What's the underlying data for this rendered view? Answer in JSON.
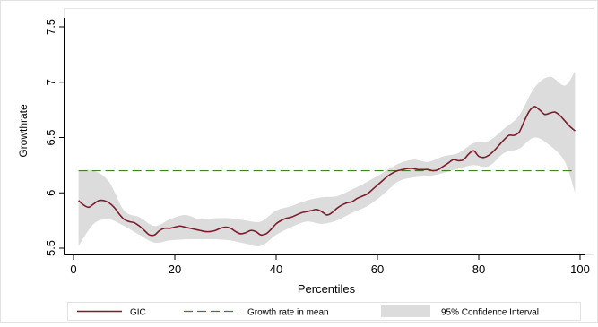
{
  "chart_data": {
    "type": "line",
    "xlabel": "Percentiles",
    "ylabel": "Growthrate",
    "xlim": [
      0,
      100
    ],
    "ylim": [
      5.5,
      7.5
    ],
    "xticks": [
      0,
      20,
      40,
      60,
      80,
      100
    ],
    "yticks": [
      5.5,
      6,
      6.5,
      7,
      7.5
    ],
    "grid": false,
    "legend_position": "bottom",
    "series": [
      {
        "name": "GIC",
        "color": "#7b1c2c",
        "x": [
          1,
          2,
          3,
          4,
          5,
          6,
          7,
          8,
          9,
          10,
          11,
          12,
          13,
          14,
          15,
          16,
          17,
          18,
          19,
          20,
          21,
          22,
          23,
          24,
          25,
          26,
          27,
          28,
          29,
          30,
          31,
          32,
          33,
          34,
          35,
          36,
          37,
          38,
          39,
          40,
          41,
          42,
          43,
          44,
          45,
          46,
          47,
          48,
          49,
          50,
          51,
          52,
          53,
          54,
          55,
          56,
          57,
          58,
          59,
          60,
          61,
          62,
          63,
          64,
          65,
          66,
          67,
          68,
          69,
          70,
          71,
          72,
          73,
          74,
          75,
          76,
          77,
          78,
          79,
          80,
          81,
          82,
          83,
          84,
          85,
          86,
          87,
          88,
          89,
          90,
          91,
          92,
          93,
          94,
          95,
          96,
          97,
          98,
          99
        ],
        "y": [
          5.93,
          5.89,
          5.87,
          5.9,
          5.93,
          5.93,
          5.91,
          5.87,
          5.81,
          5.76,
          5.74,
          5.73,
          5.7,
          5.66,
          5.62,
          5.62,
          5.66,
          5.68,
          5.68,
          5.69,
          5.7,
          5.69,
          5.68,
          5.67,
          5.66,
          5.65,
          5.65,
          5.66,
          5.68,
          5.69,
          5.68,
          5.65,
          5.63,
          5.64,
          5.66,
          5.65,
          5.62,
          5.63,
          5.67,
          5.72,
          5.75,
          5.77,
          5.78,
          5.8,
          5.82,
          5.83,
          5.84,
          5.85,
          5.83,
          5.8,
          5.82,
          5.86,
          5.89,
          5.91,
          5.92,
          5.95,
          5.97,
          5.99,
          6.03,
          6.07,
          6.11,
          6.15,
          6.18,
          6.2,
          6.21,
          6.22,
          6.22,
          6.21,
          6.21,
          6.21,
          6.2,
          6.21,
          6.24,
          6.27,
          6.3,
          6.29,
          6.3,
          6.35,
          6.38,
          6.33,
          6.32,
          6.34,
          6.38,
          6.43,
          6.48,
          6.52,
          6.52,
          6.55,
          6.65,
          6.74,
          6.78,
          6.75,
          6.71,
          6.72,
          6.73,
          6.7,
          6.65,
          6.6,
          6.56
        ]
      },
      {
        "name": "Growth rate in mean",
        "color": "#4a7a2a",
        "x": [
          1,
          99
        ],
        "y": [
          6.2,
          6.2
        ]
      },
      {
        "name": "95% Confidence Interval",
        "color": "#dcdcdc",
        "type": "area",
        "x": [
          1,
          4,
          7,
          10,
          13,
          16,
          19,
          22,
          25,
          28,
          31,
          34,
          37,
          40,
          43,
          46,
          49,
          52,
          55,
          58,
          61,
          64,
          67,
          70,
          73,
          76,
          79,
          82,
          85,
          88,
          91,
          94,
          97,
          99
        ],
        "lower": [
          5.52,
          5.72,
          5.76,
          5.7,
          5.62,
          5.55,
          5.57,
          5.58,
          5.58,
          5.58,
          5.57,
          5.54,
          5.52,
          5.62,
          5.69,
          5.74,
          5.72,
          5.75,
          5.82,
          5.88,
          5.98,
          6.1,
          6.14,
          6.15,
          6.18,
          6.22,
          6.25,
          6.24,
          6.36,
          6.4,
          6.5,
          6.43,
          6.28,
          6.0
        ],
        "upper": [
          6.2,
          6.2,
          6.1,
          5.84,
          5.78,
          5.7,
          5.76,
          5.8,
          5.76,
          5.77,
          5.77,
          5.75,
          5.74,
          5.84,
          5.88,
          5.93,
          5.96,
          5.97,
          6.03,
          6.1,
          6.18,
          6.26,
          6.3,
          6.28,
          6.33,
          6.36,
          6.45,
          6.47,
          6.58,
          6.7,
          6.95,
          7.05,
          6.97,
          7.1
        ]
      }
    ]
  }
}
